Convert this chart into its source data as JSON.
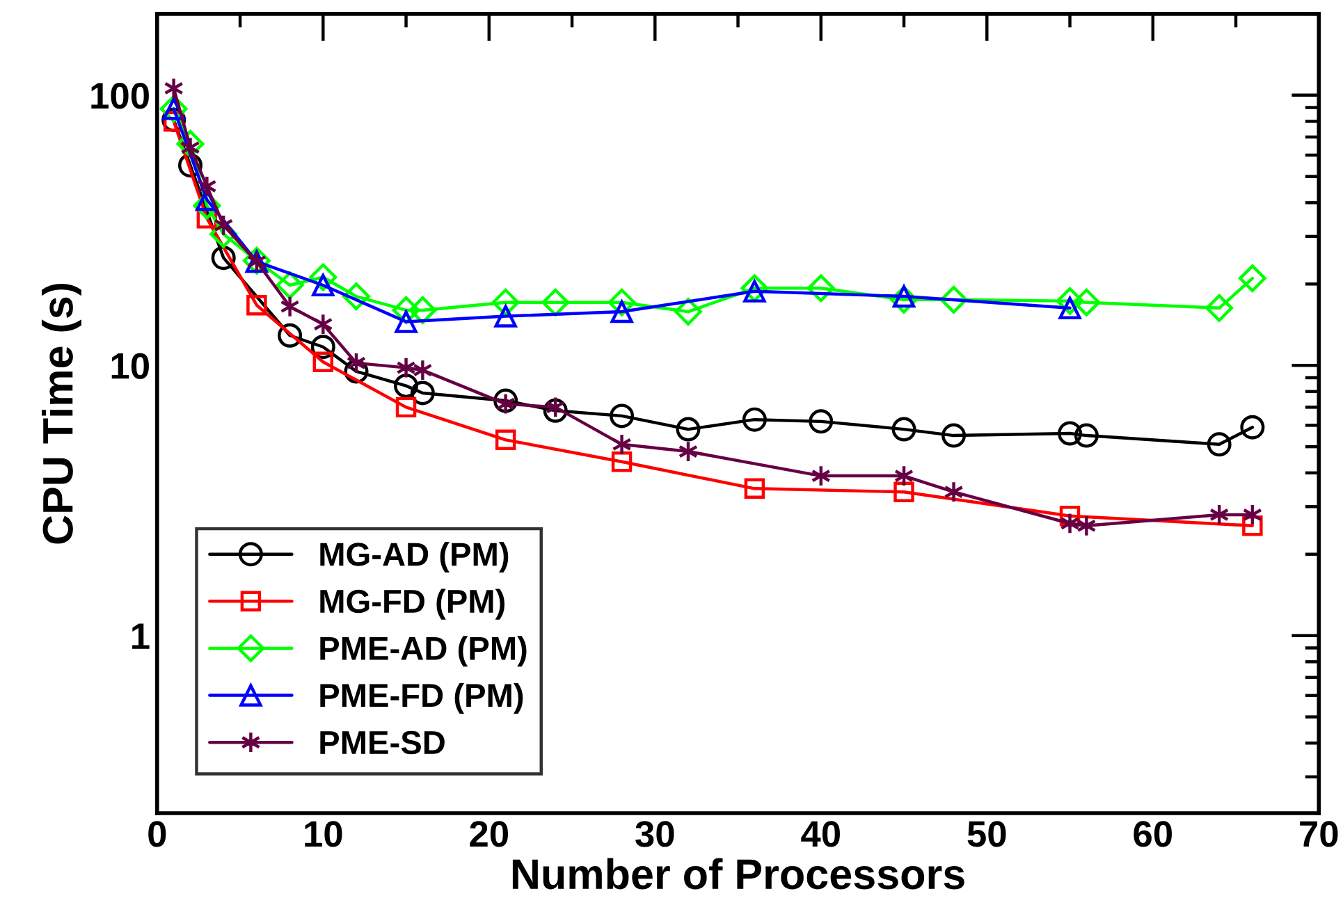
{
  "chart_data": {
    "type": "line",
    "xlabel": "Number of Processors",
    "ylabel": "CPU Time (s)",
    "log": "y",
    "xlim": [
      0,
      70
    ],
    "xticks": [
      0,
      10,
      20,
      30,
      40,
      50,
      60,
      70
    ],
    "ylim": [
      0.22,
      200
    ],
    "yticks": [
      1,
      10,
      100
    ],
    "grid": false,
    "legend": "bottom left",
    "series": [
      {
        "name": "MG-AD (PM)",
        "color": "#000000",
        "marker": "circle",
        "x": [
          1,
          2,
          4,
          8,
          10,
          12,
          15,
          16,
          21,
          24,
          28,
          32,
          36,
          40,
          45,
          48,
          55,
          56,
          64,
          66
        ],
        "values": [
          81,
          55,
          25,
          12.9,
          11.7,
          9.5,
          8.4,
          7.9,
          7.4,
          6.8,
          6.5,
          5.8,
          6.3,
          6.2,
          5.8,
          5.5,
          5.6,
          5.5,
          5.1,
          5.9
        ]
      },
      {
        "name": "MG-FD (PM)",
        "color": "#ff0000",
        "marker": "square",
        "x": [
          1,
          3,
          6,
          10,
          15,
          21,
          28,
          36,
          45,
          55,
          66
        ],
        "values": [
          80,
          35,
          16.7,
          10.3,
          7.0,
          5.3,
          4.4,
          3.5,
          3.4,
          2.77,
          2.55
        ]
      },
      {
        "name": "PME-AD (PM)",
        "color": "#00ff00",
        "marker": "diamond",
        "x": [
          1,
          2,
          3,
          4,
          6,
          8,
          10,
          12,
          15,
          16,
          21,
          24,
          28,
          32,
          36,
          40,
          45,
          48,
          55,
          56,
          64,
          66
        ],
        "values": [
          89,
          66,
          39,
          30.6,
          24.4,
          19.8,
          21.2,
          18,
          16,
          16,
          17.1,
          17.1,
          17.1,
          15.8,
          19.3,
          19.3,
          17.5,
          17.5,
          17.3,
          17.1,
          16.3,
          21
        ]
      },
      {
        "name": "PME-FD (PM)",
        "color": "#0000ff",
        "marker": "triangle",
        "x": [
          1,
          3,
          6,
          10,
          15,
          21,
          28,
          36,
          45,
          55
        ],
        "values": [
          89,
          41,
          24.2,
          19.8,
          14.5,
          15.2,
          15.8,
          18.8,
          18,
          16.3
        ]
      },
      {
        "name": "PME-SD",
        "color": "#660044",
        "marker": "cross",
        "x": [
          1,
          2,
          3,
          4,
          6,
          8,
          10,
          12,
          15,
          16,
          21,
          24,
          28,
          32,
          40,
          45,
          48,
          55,
          56,
          64,
          66
        ],
        "values": [
          106,
          64,
          46,
          33,
          24.2,
          16.5,
          14.2,
          10.2,
          9.8,
          9.6,
          7.2,
          7.0,
          5.1,
          4.8,
          3.9,
          3.9,
          3.4,
          2.6,
          2.55,
          2.8,
          2.8
        ]
      }
    ]
  }
}
